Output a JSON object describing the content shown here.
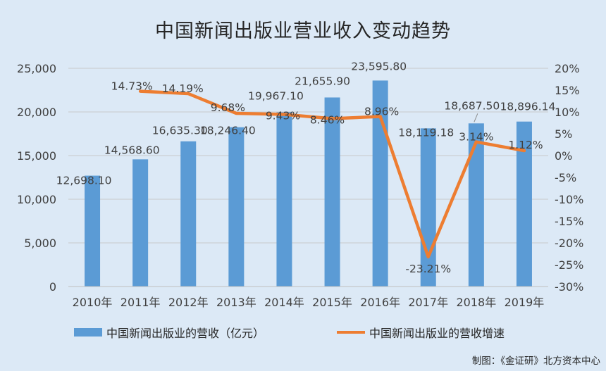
{
  "chart_data": {
    "type": "bar",
    "title": "中国新闻出版业营业收入变动趋势",
    "categories": [
      "2010年",
      "2011年",
      "2012年",
      "2013年",
      "2014年",
      "2015年",
      "2016年",
      "2017年",
      "2018年",
      "2019年"
    ],
    "series": [
      {
        "name": "中国新闻出版业的营收（亿元）",
        "type": "bar",
        "axis": "left",
        "values": [
          12698.1,
          14568.6,
          16635.3,
          18246.4,
          19967.1,
          21655.9,
          23595.8,
          18119.18,
          18687.5,
          18896.14
        ],
        "labels": [
          "12,698.10",
          "14,568.60",
          "16,635.30",
          "18,246.40",
          "19,967.10",
          "21,655.90",
          "23,595.80",
          "18,119.18",
          "18,687.50",
          "18,896.14"
        ]
      },
      {
        "name": "中国新闻出版业的营收增速",
        "type": "line",
        "axis": "right",
        "values": [
          null,
          14.73,
          14.19,
          9.68,
          9.43,
          8.46,
          8.96,
          -23.21,
          3.14,
          1.12
        ],
        "labels": [
          "",
          "14.73%",
          "14.19%",
          "9.68%",
          "9.43%",
          "8.46%",
          "8.96%",
          "-23.21%",
          "3.14%",
          "1.12%"
        ]
      }
    ],
    "y_left": {
      "ylim": [
        0,
        25000
      ],
      "ticks": [
        0,
        5000,
        10000,
        15000,
        20000,
        25000
      ],
      "tick_labels": [
        "0",
        "5,000",
        "10,000",
        "15,000",
        "20,000",
        "25,000"
      ]
    },
    "y_right": {
      "ylim": [
        -30,
        20
      ],
      "ticks": [
        -30,
        -25,
        -20,
        -15,
        -10,
        -5,
        0,
        5,
        10,
        15,
        20
      ],
      "tick_labels": [
        "-30%",
        "-25%",
        "-20%",
        "-15%",
        "-10%",
        "-5%",
        "0%",
        "5%",
        "10%",
        "15%",
        "20%"
      ]
    },
    "grid": true,
    "legend": "bottom",
    "colors": {
      "bar": "#5b9bd5",
      "line": "#ed7d31"
    }
  },
  "source": "制图：《金证研》北方资本中心"
}
